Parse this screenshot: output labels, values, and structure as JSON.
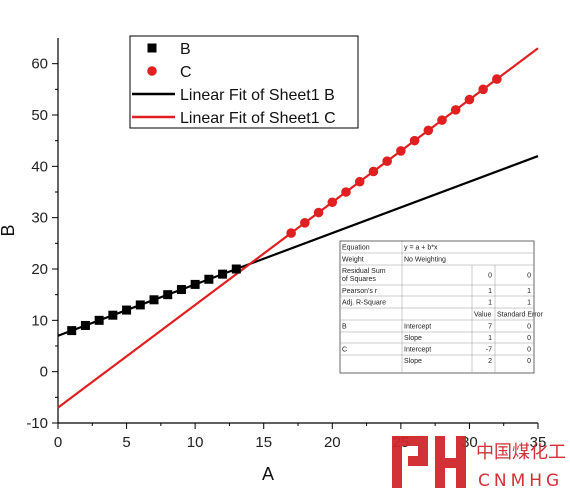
{
  "chart_data": {
    "type": "scatter",
    "xlabel": "A",
    "ylabel": "B",
    "xlim": [
      0,
      35
    ],
    "ylim": [
      -10,
      65
    ],
    "xticks": [
      0,
      5,
      10,
      15,
      20,
      25,
      30,
      35
    ],
    "yticks": [
      -10,
      0,
      10,
      20,
      30,
      40,
      50,
      60
    ],
    "grid": false,
    "legend_position": "top-left",
    "series": [
      {
        "name": "B",
        "kind": "scatter",
        "marker": "square",
        "color": "#000000",
        "x": [
          1,
          2,
          3,
          4,
          5,
          6,
          7,
          8,
          9,
          10,
          11,
          12,
          13
        ],
        "y": [
          8,
          9,
          10,
          11,
          12,
          13,
          14,
          15,
          16,
          17,
          18,
          19,
          20
        ]
      },
      {
        "name": "C",
        "kind": "scatter",
        "marker": "circle",
        "color": "#e02020",
        "x": [
          17,
          18,
          19,
          20,
          21,
          22,
          23,
          24,
          25,
          26,
          27,
          28,
          29,
          30,
          31,
          32
        ],
        "y": [
          27,
          29,
          31,
          33,
          35,
          37,
          39,
          41,
          43,
          45,
          47,
          49,
          51,
          53,
          55,
          57
        ]
      },
      {
        "name": "Linear Fit of Sheet1 B",
        "kind": "line",
        "color": "#000000",
        "intercept": 7,
        "slope": 1,
        "x_range": [
          0,
          35
        ]
      },
      {
        "name": "Linear Fit of Sheet1 C",
        "kind": "line",
        "color": "#e02020",
        "intercept": -7,
        "slope": 2,
        "x_range": [
          0,
          35
        ]
      }
    ],
    "fit_table": {
      "rows": [
        [
          "Equation",
          "y = a + b*x",
          "",
          ""
        ],
        [
          "Weight",
          "No Weighting",
          "",
          ""
        ],
        [
          "Residual Sum of Squares",
          "",
          "0",
          "0"
        ],
        [
          "Pearson's r",
          "",
          "1",
          "1"
        ],
        [
          "Adj. R-Square",
          "",
          "1",
          "1"
        ],
        [
          "",
          "",
          "Value",
          "Standard Error"
        ],
        [
          "B",
          "Intercept",
          "7",
          "0"
        ],
        [
          "",
          "Slope",
          "1",
          "0"
        ],
        [
          "C",
          "Intercept",
          "-7",
          "0"
        ],
        [
          "",
          "Slope",
          "2",
          "0"
        ]
      ]
    }
  },
  "watermark": {
    "chinese": "中国煤化工",
    "latin": "CNMHG",
    "color": "#d0262c"
  }
}
